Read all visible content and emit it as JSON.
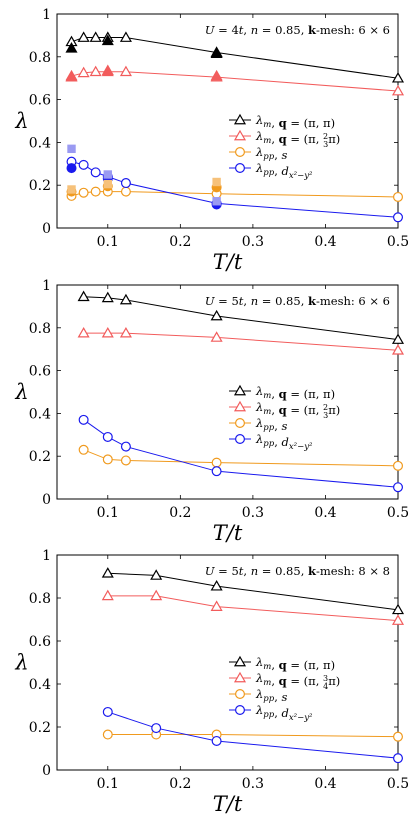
{
  "colors": {
    "black": "#000000",
    "red": "#f25c5c",
    "orange": "#f09a1e",
    "blue": "#1a1aee",
    "blue_light": "#9a9af2",
    "orange_light": "#f6c17a"
  },
  "chart_data": [
    {
      "type": "line",
      "annotation": "U = 4t, n = 0.85, k-mesh: 6 × 6",
      "xlabel": "T/t",
      "ylabel": "λ",
      "xlim": [
        0.03,
        0.5
      ],
      "ylim": [
        0,
        1
      ],
      "xticks": [
        "0.1",
        "0.2",
        "0.3",
        "0.4",
        "0.5"
      ],
      "xtick_values": [
        0.1,
        0.2,
        0.3,
        0.4,
        0.5
      ],
      "yticks": [
        "0",
        "0.2",
        "0.4",
        "0.6",
        "0.8",
        "1"
      ],
      "ytick_values": [
        0,
        0.2,
        0.4,
        0.6,
        0.8,
        1
      ],
      "legend_position": "center-right",
      "series": [
        {
          "name": "λm, q = (π, π)",
          "color": "#000000",
          "marker": "triangle",
          "x": [
            0.05,
            0.0667,
            0.0833,
            0.1,
            0.125,
            0.25,
            0.5
          ],
          "y": [
            0.87,
            0.89,
            0.89,
            0.89,
            0.89,
            0.82,
            0.7
          ]
        },
        {
          "name": "λm, q = (π, 2/3 π)",
          "color": "#f25c5c",
          "marker": "triangle",
          "x": [
            0.05,
            0.0667,
            0.0833,
            0.1,
            0.125,
            0.25,
            0.5
          ],
          "y": [
            0.71,
            0.725,
            0.73,
            0.73,
            0.73,
            0.705,
            0.64
          ]
        },
        {
          "name": "λpp, s",
          "color": "#f09a1e",
          "marker": "circle",
          "x": [
            0.05,
            0.0667,
            0.0833,
            0.1,
            0.125,
            0.25,
            0.5
          ],
          "y": [
            0.15,
            0.165,
            0.17,
            0.17,
            0.17,
            0.16,
            0.145
          ]
        },
        {
          "name": "λpp, dx²−y²",
          "color": "#1a1aee",
          "marker": "circle",
          "x": [
            0.05,
            0.0667,
            0.0833,
            0.1,
            0.125,
            0.25,
            0.5
          ],
          "y": [
            0.31,
            0.295,
            0.26,
            0.24,
            0.21,
            0.115,
            0.05
          ]
        }
      ],
      "extra_points": [
        {
          "shape": "filled-triangle",
          "color": "#000000",
          "x": 0.05,
          "y": 0.84
        },
        {
          "shape": "filled-triangle",
          "color": "#000000",
          "x": 0.1,
          "y": 0.875
        },
        {
          "shape": "filled-triangle",
          "color": "#000000",
          "x": 0.25,
          "y": 0.815
        },
        {
          "shape": "filled-triangle",
          "color": "#f25c5c",
          "x": 0.05,
          "y": 0.705
        },
        {
          "shape": "filled-triangle",
          "color": "#f25c5c",
          "x": 0.1,
          "y": 0.735
        },
        {
          "shape": "filled-triangle",
          "color": "#f25c5c",
          "x": 0.25,
          "y": 0.71
        },
        {
          "shape": "filled-circle",
          "color": "#1a1aee",
          "x": 0.05,
          "y": 0.28
        },
        {
          "shape": "filled-circle",
          "color": "#1a1aee",
          "x": 0.1,
          "y": 0.23
        },
        {
          "shape": "filled-circle",
          "color": "#1a1aee",
          "x": 0.25,
          "y": 0.11
        },
        {
          "shape": "filled-circle",
          "color": "#f09a1e",
          "x": 0.05,
          "y": 0.17
        },
        {
          "shape": "filled-circle",
          "color": "#f09a1e",
          "x": 0.1,
          "y": 0.195
        },
        {
          "shape": "filled-circle",
          "color": "#f09a1e",
          "x": 0.25,
          "y": 0.19
        },
        {
          "shape": "filled-square",
          "color": "#9a9af2",
          "x": 0.05,
          "y": 0.37
        },
        {
          "shape": "filled-square",
          "color": "#9a9af2",
          "x": 0.1,
          "y": 0.25
        },
        {
          "shape": "filled-square",
          "color": "#9a9af2",
          "x": 0.25,
          "y": 0.125
        },
        {
          "shape": "filled-square",
          "color": "#f6c17a",
          "x": 0.05,
          "y": 0.18
        },
        {
          "shape": "filled-square",
          "color": "#f6c17a",
          "x": 0.1,
          "y": 0.205
        },
        {
          "shape": "filled-square",
          "color": "#f6c17a",
          "x": 0.25,
          "y": 0.215
        }
      ]
    },
    {
      "type": "line",
      "annotation": "U = 5t, n = 0.85, k-mesh: 6 × 6",
      "xlabel": "T/t",
      "ylabel": "λ",
      "xlim": [
        0.03,
        0.5
      ],
      "ylim": [
        0,
        1
      ],
      "xticks": [
        "0.1",
        "0.2",
        "0.3",
        "0.4",
        "0.5"
      ],
      "xtick_values": [
        0.1,
        0.2,
        0.3,
        0.4,
        0.5
      ],
      "yticks": [
        "0",
        "0.2",
        "0.4",
        "0.6",
        "0.8",
        "1"
      ],
      "ytick_values": [
        0,
        0.2,
        0.4,
        0.6,
        0.8,
        1
      ],
      "legend_position": "center-right",
      "series": [
        {
          "name": "λm, q = (π, π)",
          "color": "#000000",
          "marker": "triangle",
          "x": [
            0.0667,
            0.1,
            0.125,
            0.25,
            0.5
          ],
          "y": [
            0.945,
            0.94,
            0.93,
            0.855,
            0.745
          ]
        },
        {
          "name": "λm, q = (π, 2/3 π)",
          "color": "#f25c5c",
          "marker": "triangle",
          "x": [
            0.0667,
            0.1,
            0.125,
            0.25,
            0.5
          ],
          "y": [
            0.775,
            0.775,
            0.775,
            0.755,
            0.695
          ]
        },
        {
          "name": "λpp, s",
          "color": "#f09a1e",
          "marker": "circle",
          "x": [
            0.0667,
            0.1,
            0.125,
            0.25,
            0.5
          ],
          "y": [
            0.23,
            0.185,
            0.18,
            0.17,
            0.155
          ]
        },
        {
          "name": "λpp, dx²−y²",
          "color": "#1a1aee",
          "marker": "circle",
          "x": [
            0.0667,
            0.1,
            0.125,
            0.25,
            0.5
          ],
          "y": [
            0.37,
            0.29,
            0.245,
            0.13,
            0.055
          ]
        }
      ],
      "extra_points": []
    },
    {
      "type": "line",
      "annotation": "U = 5t, n = 0.85, k-mesh: 8 × 8",
      "xlabel": "T/t",
      "ylabel": "λ",
      "xlim": [
        0.03,
        0.5
      ],
      "ylim": [
        0,
        1
      ],
      "xticks": [
        "0.1",
        "0.2",
        "0.3",
        "0.4",
        "0.5"
      ],
      "xtick_values": [
        0.1,
        0.2,
        0.3,
        0.4,
        0.5
      ],
      "yticks": [
        "0",
        "0.2",
        "0.4",
        "0.6",
        "0.8",
        "1"
      ],
      "ytick_values": [
        0,
        0.2,
        0.4,
        0.6,
        0.8,
        1
      ],
      "legend_position": "center-right",
      "series": [
        {
          "name": "λm, q = (π, π)",
          "color": "#000000",
          "marker": "triangle",
          "x": [
            0.1,
            0.1667,
            0.25,
            0.5
          ],
          "y": [
            0.915,
            0.905,
            0.855,
            0.745
          ]
        },
        {
          "name": "λm, q = (π, 3/4 π)",
          "color": "#f25c5c",
          "marker": "triangle",
          "x": [
            0.1,
            0.1667,
            0.25,
            0.5
          ],
          "y": [
            0.81,
            0.81,
            0.76,
            0.695
          ]
        },
        {
          "name": "λpp, s",
          "color": "#f09a1e",
          "marker": "circle",
          "x": [
            0.1,
            0.1667,
            0.25,
            0.5
          ],
          "y": [
            0.165,
            0.165,
            0.165,
            0.155
          ]
        },
        {
          "name": "λpp, dx²−y²",
          "color": "#1a1aee",
          "marker": "circle",
          "x": [
            0.1,
            0.1667,
            0.25,
            0.5
          ],
          "y": [
            0.27,
            0.195,
            0.135,
            0.055
          ]
        }
      ],
      "extra_points": []
    }
  ]
}
